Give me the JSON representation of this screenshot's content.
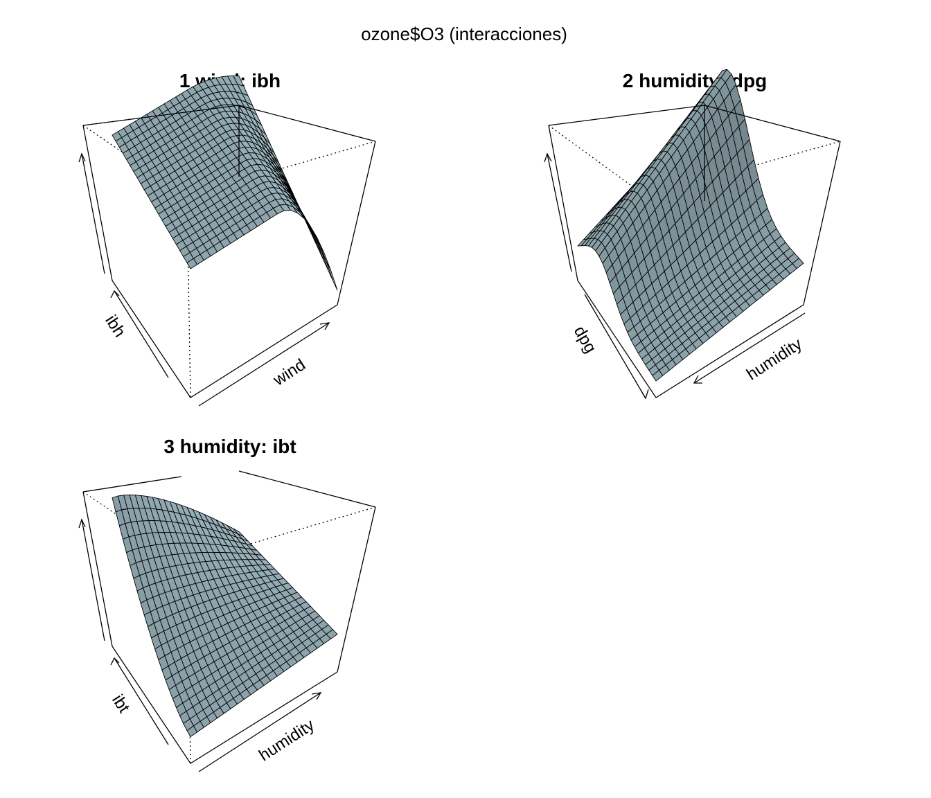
{
  "figure": {
    "main_title": "ozone$O3 (interacciones)",
    "surface_color": "#8fa6ae"
  },
  "chart_data": [
    {
      "type": "surface",
      "title": "1 wind: ibh",
      "xlabel": "wind",
      "ylabel": "ibh",
      "view": "x-right, y-back-left",
      "grid": {
        "nx": 22,
        "ny": 22
      },
      "shape": "plateau with dip at high wind / low ibh"
    },
    {
      "type": "surface",
      "title": "2 humidity: dpg",
      "xlabel": "humidity",
      "ylabel": "dpg",
      "view": "x-left, y-front",
      "grid": {
        "nx": 22,
        "ny": 22
      },
      "shape": "ridge peaking at mid dpg, rising with humidity"
    },
    {
      "type": "surface",
      "title": "3 humidity: ibt",
      "xlabel": "humidity",
      "ylabel": "ibt",
      "view": "x-right, y-back-left",
      "grid": {
        "nx": 22,
        "ny": 22
      },
      "shape": "steep ridge at high ibt and low humidity"
    }
  ]
}
